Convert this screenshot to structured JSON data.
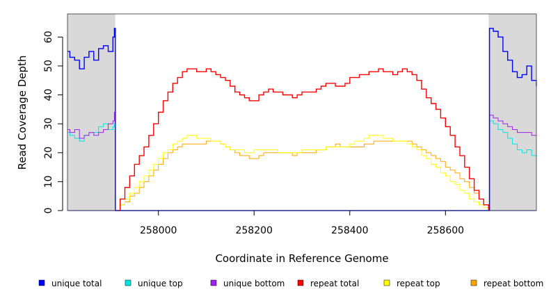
{
  "chart_data": {
    "type": "line",
    "title": "",
    "xlabel": "Coordinate in Reference Genome",
    "ylabel": "Read Coverage Depth",
    "xlim": [
      257810,
      258790
    ],
    "ylim": [
      0,
      68
    ],
    "x_ticks": [
      258000,
      258200,
      258400,
      258600
    ],
    "x_tick_labels": [
      "258000",
      "258200",
      "258400",
      "258600"
    ],
    "y_ticks": [
      0,
      10,
      20,
      30,
      40,
      50,
      60
    ],
    "y_tick_labels": [
      "0",
      "10",
      "20",
      "30",
      "40",
      "50",
      "60"
    ],
    "shaded_regions": [
      {
        "name": "left-flank",
        "x": [
          257810,
          257910
        ],
        "color": "#d9d9d9"
      },
      {
        "name": "right-flank",
        "x": [
          258690,
          258790
        ],
        "color": "#d9d9d9"
      }
    ],
    "series": [
      {
        "name": "unique total",
        "color": "#0000ff",
        "x": [
          257810,
          257815,
          257825,
          257835,
          257845,
          257855,
          257865,
          257875,
          257885,
          257895,
          257905,
          257908,
          257910,
          258690,
          258692,
          258700,
          258710,
          258720,
          258730,
          258740,
          258750,
          258760,
          258770,
          258780,
          258790
        ],
        "values": [
          55,
          53,
          52,
          49,
          53,
          55,
          52,
          56,
          57,
          55,
          60,
          63,
          0,
          0,
          63,
          62,
          60,
          55,
          52,
          48,
          46,
          47,
          50,
          45,
          43
        ]
      },
      {
        "name": "unique top",
        "color": "#00e5e5",
        "x": [
          257810,
          257815,
          257825,
          257835,
          257845,
          257855,
          257865,
          257875,
          257885,
          257895,
          257905,
          257908,
          257910,
          258690,
          258692,
          258700,
          258710,
          258720,
          258730,
          258740,
          258750,
          258760,
          258770,
          258780,
          258790
        ],
        "values": [
          27,
          26,
          25,
          24,
          26,
          27,
          27,
          29,
          30,
          28,
          29,
          30,
          0,
          0,
          31,
          30,
          28,
          27,
          25,
          23,
          21,
          20,
          21,
          19,
          17
        ]
      },
      {
        "name": "unique bottom",
        "color": "#a020f0",
        "x": [
          257810,
          257815,
          257825,
          257835,
          257845,
          257855,
          257865,
          257875,
          257885,
          257895,
          257905,
          257908,
          257910,
          258690,
          258692,
          258700,
          258710,
          258720,
          258730,
          258740,
          258750,
          258760,
          258770,
          258780,
          258790
        ],
        "values": [
          28,
          27,
          28,
          25,
          26,
          27,
          26,
          27,
          28,
          30,
          31,
          34,
          0,
          0,
          33,
          32,
          31,
          30,
          29,
          28,
          27,
          27,
          27,
          26,
          26
        ]
      },
      {
        "name": "repeat total",
        "color": "#ff0000",
        "x": [
          257910,
          257920,
          257930,
          257940,
          257950,
          257960,
          257970,
          257980,
          257990,
          258000,
          258010,
          258020,
          258030,
          258040,
          258050,
          258060,
          258070,
          258080,
          258090,
          258100,
          258110,
          258120,
          258130,
          258140,
          258150,
          258160,
          258170,
          258180,
          258190,
          258200,
          258210,
          258220,
          258230,
          258240,
          258250,
          258260,
          258270,
          258280,
          258290,
          258300,
          258310,
          258320,
          258330,
          258340,
          258350,
          258360,
          258370,
          258380,
          258390,
          258400,
          258410,
          258420,
          258430,
          258440,
          258450,
          258460,
          258470,
          258480,
          258490,
          258500,
          258510,
          258520,
          258530,
          258540,
          258550,
          258560,
          258570,
          258580,
          258590,
          258600,
          258610,
          258620,
          258630,
          258640,
          258650,
          258660,
          258670,
          258680,
          258690
        ],
        "values": [
          0,
          4,
          8,
          12,
          16,
          19,
          22,
          26,
          30,
          34,
          38,
          41,
          44,
          46,
          48,
          49,
          49,
          48,
          48,
          49,
          48,
          47,
          46,
          45,
          43,
          41,
          40,
          39,
          38,
          38,
          40,
          41,
          42,
          41,
          41,
          40,
          40,
          39,
          40,
          41,
          41,
          41,
          42,
          43,
          44,
          44,
          43,
          43,
          44,
          46,
          46,
          47,
          47,
          48,
          48,
          49,
          48,
          48,
          47,
          48,
          49,
          48,
          47,
          45,
          42,
          39,
          37,
          35,
          32,
          29,
          26,
          22,
          19,
          15,
          11,
          7,
          4,
          2,
          0
        ]
      },
      {
        "name": "repeat top",
        "color": "#ffff00",
        "x": [
          257910,
          257920,
          257930,
          257940,
          257950,
          257960,
          257970,
          257980,
          257990,
          258000,
          258010,
          258020,
          258030,
          258040,
          258050,
          258060,
          258070,
          258080,
          258090,
          258100,
          258110,
          258120,
          258130,
          258140,
          258150,
          258160,
          258170,
          258180,
          258190,
          258200,
          258210,
          258220,
          258230,
          258240,
          258250,
          258260,
          258270,
          258280,
          258290,
          258300,
          258310,
          258320,
          258330,
          258340,
          258350,
          258360,
          258370,
          258380,
          258390,
          258400,
          258410,
          258420,
          258430,
          258440,
          258450,
          258460,
          258470,
          258480,
          258490,
          258500,
          258510,
          258520,
          258530,
          258540,
          258550,
          258560,
          258570,
          258580,
          258590,
          258600,
          258610,
          258620,
          258630,
          258640,
          258650,
          258660,
          258670,
          258680,
          258690
        ],
        "values": [
          0,
          2,
          4,
          6,
          8,
          10,
          12,
          14,
          16,
          18,
          20,
          21,
          23,
          24,
          25,
          26,
          26,
          25,
          25,
          25,
          24,
          24,
          23,
          22,
          21,
          21,
          21,
          20,
          20,
          21,
          21,
          21,
          21,
          21,
          20,
          20,
          20,
          20,
          20,
          21,
          21,
          21,
          21,
          21,
          22,
          22,
          22,
          22,
          22,
          23,
          24,
          24,
          25,
          26,
          26,
          26,
          25,
          25,
          24,
          24,
          24,
          23,
          22,
          21,
          19,
          18,
          16,
          15,
          13,
          12,
          10,
          9,
          7,
          6,
          4,
          3,
          2,
          1,
          0
        ]
      },
      {
        "name": "repeat bottom",
        "color": "#ffa500",
        "x": [
          257810,
          257910,
          257920,
          257930,
          257940,
          257950,
          257960,
          257970,
          257980,
          257990,
          258000,
          258010,
          258020,
          258030,
          258040,
          258050,
          258060,
          258070,
          258080,
          258090,
          258100,
          258110,
          258120,
          258130,
          258140,
          258150,
          258160,
          258170,
          258180,
          258190,
          258200,
          258210,
          258220,
          258230,
          258240,
          258250,
          258260,
          258270,
          258280,
          258290,
          258300,
          258310,
          258320,
          258330,
          258340,
          258350,
          258360,
          258370,
          258380,
          258390,
          258400,
          258410,
          258420,
          258430,
          258440,
          258450,
          258460,
          258470,
          258480,
          258490,
          258500,
          258510,
          258520,
          258530,
          258540,
          258550,
          258560,
          258570,
          258580,
          258590,
          258600,
          258610,
          258620,
          258630,
          258640,
          258650,
          258660,
          258670,
          258680,
          258690,
          258790
        ],
        "values": [
          0,
          0,
          2,
          3,
          5,
          6,
          8,
          10,
          12,
          14,
          16,
          18,
          20,
          21,
          22,
          23,
          23,
          23,
          23,
          23,
          24,
          24,
          24,
          23,
          22,
          21,
          20,
          19,
          19,
          18,
          18,
          19,
          20,
          20,
          20,
          20,
          20,
          20,
          19,
          20,
          20,
          20,
          20,
          21,
          21,
          22,
          22,
          23,
          22,
          22,
          22,
          22,
          22,
          23,
          23,
          24,
          24,
          24,
          24,
          24,
          24,
          24,
          24,
          23,
          22,
          21,
          20,
          19,
          18,
          17,
          15,
          14,
          13,
          11,
          10,
          8,
          6,
          4,
          2,
          0,
          0
        ]
      }
    ],
    "legend": {
      "placement": "bottom",
      "entries": [
        {
          "label": "unique total",
          "color": "#0000ff"
        },
        {
          "label": "unique top",
          "color": "#00e5e5"
        },
        {
          "label": "unique bottom",
          "color": "#a020f0"
        },
        {
          "label": "repeat total",
          "color": "#ff0000"
        },
        {
          "label": "repeat top",
          "color": "#ffff00"
        },
        {
          "label": "repeat bottom",
          "color": "#ffa500"
        }
      ]
    }
  }
}
